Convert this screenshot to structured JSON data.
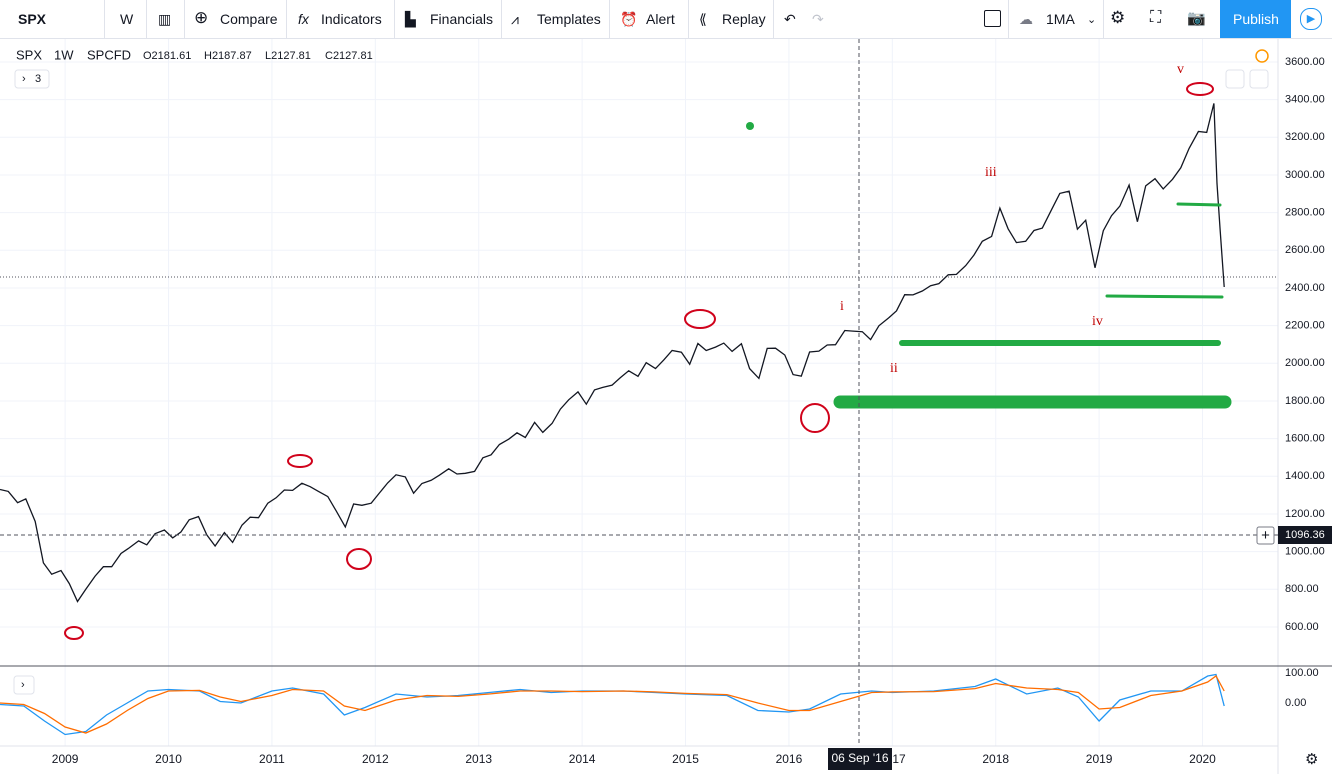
{
  "toolbar": {
    "symbol": "SPX",
    "interval": "W",
    "buttons": [
      "Compare",
      "Indicators",
      "Financials",
      "Templates",
      "Alert",
      "Replay"
    ],
    "indicator": "1MA",
    "publish": "Publish"
  },
  "legend": {
    "symbol": "SPX",
    "interval": "1W",
    "source": "SPCFD",
    "ohlc": [
      "O2181.61",
      "H2187.87",
      "L2127.81",
      "C2127.81"
    ],
    "indicators_count": "3"
  },
  "crosshair": {
    "date": "06 Sep '16",
    "price": "1096.36"
  },
  "waves": [
    "i",
    "ii",
    "iii",
    "iv",
    "v"
  ],
  "chart_data": [
    {
      "type": "line",
      "color": "#131722",
      "x": [
        2008.37,
        2008.45,
        2008.54,
        2008.62,
        2008.71,
        2008.79,
        2008.87,
        2008.96,
        2009.04,
        2009.12,
        2009.2,
        2009.29,
        2009.37,
        2009.45,
        2009.54,
        2009.62,
        2009.71,
        2009.79,
        2009.87,
        2009.96,
        2010.04,
        2010.12,
        2010.2,
        2010.29,
        2010.37,
        2010.45,
        2010.54,
        2010.62,
        2010.71,
        2010.79,
        2010.87,
        2010.96,
        2011.04,
        2011.12,
        2011.2,
        2011.29,
        2011.37,
        2011.45,
        2011.54,
        2011.62,
        2011.71,
        2011.79,
        2011.87,
        2011.96,
        2012.04,
        2012.12,
        2012.2,
        2012.29,
        2012.37,
        2012.45,
        2012.54,
        2012.62,
        2012.71,
        2012.79,
        2012.87,
        2012.96,
        2013.04,
        2013.12,
        2013.2,
        2013.29,
        2013.37,
        2013.45,
        2013.54,
        2013.62,
        2013.71,
        2013.79,
        2013.87,
        2013.96,
        2014.04,
        2014.12,
        2014.2,
        2014.29,
        2014.37,
        2014.45,
        2014.54,
        2014.62,
        2014.71,
        2014.79,
        2014.87,
        2014.96,
        2015.04,
        2015.12,
        2015.2,
        2015.29,
        2015.37,
        2015.45,
        2015.54,
        2015.62,
        2015.71,
        2015.79,
        2015.87,
        2015.96,
        2016.04,
        2016.12,
        2016.2,
        2016.29,
        2016.37,
        2016.45,
        2016.54,
        2016.62,
        2016.71,
        2016.79,
        2016.87,
        2016.96,
        2017.04,
        2017.12,
        2017.2,
        2017.29,
        2017.37,
        2017.45,
        2017.54,
        2017.62,
        2017.71,
        2017.79,
        2017.87,
        2017.96,
        2018.04,
        2018.12,
        2018.2,
        2018.29,
        2018.37,
        2018.45,
        2018.54,
        2018.62,
        2018.71,
        2018.79,
        2018.87,
        2018.96,
        2019.04,
        2019.12,
        2019.2,
        2019.29,
        2019.37,
        2019.45,
        2019.54,
        2019.62,
        2019.71,
        2019.79,
        2019.87,
        2019.96,
        2020.04,
        2020.11,
        2020.14,
        2020.17,
        2020.21
      ],
      "values": [
        1330,
        1320,
        1260,
        1280,
        1160,
        940,
        880,
        900,
        830,
        735,
        800,
        870,
        920,
        920,
        990,
        1020,
        1057,
        1036,
        1095,
        1115,
        1073,
        1104,
        1169,
        1186,
        1089,
        1030,
        1101,
        1049,
        1141,
        1183,
        1180,
        1257,
        1286,
        1327,
        1325,
        1363,
        1345,
        1320,
        1292,
        1218,
        1131,
        1253,
        1246,
        1257,
        1312,
        1365,
        1408,
        1397,
        1310,
        1362,
        1379,
        1406,
        1440,
        1412,
        1416,
        1426,
        1498,
        1514,
        1569,
        1597,
        1631,
        1606,
        1686,
        1633,
        1681,
        1757,
        1806,
        1848,
        1783,
        1859,
        1872,
        1884,
        1924,
        1960,
        1931,
        2003,
        1972,
        2018,
        2068,
        2059,
        1995,
        2105,
        2068,
        2086,
        2107,
        2063,
        2104,
        1972,
        1920,
        2079,
        2080,
        2044,
        1940,
        1932,
        2060,
        2065,
        2097,
        2099,
        2174,
        2171,
        2168,
        2126,
        2199,
        2239,
        2279,
        2364,
        2363,
        2384,
        2412,
        2423,
        2470,
        2472,
        2519,
        2575,
        2648,
        2674,
        2824,
        2714,
        2641,
        2648,
        2705,
        2718,
        2816,
        2902,
        2914,
        2712,
        2760,
        2507,
        2704,
        2784,
        2834,
        2946,
        2752,
        2942,
        2980,
        2926,
        2977,
        3038,
        3141,
        3231,
        3226,
        3380,
        2954,
        2711,
        2405
      ],
      "xlim": [
        2008.37,
        2020.73
      ],
      "xticks": [
        2009,
        2010,
        2011,
        2012,
        2013,
        2014,
        2015,
        2016,
        2017,
        2018,
        2019,
        2020
      ],
      "ylim": [
        398,
        3722
      ],
      "yticks": [
        {
          "value": 600,
          "label": "600.00"
        },
        {
          "value": 800,
          "label": "800.00"
        },
        {
          "value": 1000,
          "label": "1000.00"
        },
        {
          "value": 1200,
          "label": "1200.00"
        },
        {
          "value": 1400,
          "label": "1400.00"
        },
        {
          "value": 1600,
          "label": "1600.00"
        },
        {
          "value": 1800,
          "label": "1800.00"
        },
        {
          "value": 2000,
          "label": "2000.00"
        },
        {
          "value": 2200,
          "label": "2200.00"
        },
        {
          "value": 2400,
          "label": "2400.00"
        },
        {
          "value": 2600,
          "label": "2600.00"
        },
        {
          "value": 2800,
          "label": "2800.00"
        },
        {
          "value": 3000,
          "label": "3000.00"
        },
        {
          "value": 3200,
          "label": "3200.00"
        },
        {
          "value": 3400,
          "label": "3400.00"
        },
        {
          "value": 3600,
          "label": "3600.00"
        }
      ],
      "grid": true
    },
    {
      "type": "line",
      "x": [
        2008.37,
        2008.6,
        2008.8,
        2009.0,
        2009.2,
        2009.4,
        2009.6,
        2009.8,
        2010.0,
        2010.3,
        2010.5,
        2010.7,
        2011.0,
        2011.2,
        2011.5,
        2011.7,
        2011.9,
        2012.2,
        2012.5,
        2012.8,
        2013.1,
        2013.4,
        2013.7,
        2014.0,
        2014.4,
        2014.7,
        2015.0,
        2015.4,
        2015.7,
        2016.0,
        2016.2,
        2016.5,
        2016.8,
        2017.0,
        2017.4,
        2017.8,
        2018.0,
        2018.3,
        2018.6,
        2018.8,
        2019.0,
        2019.2,
        2019.5,
        2019.8,
        2020.05,
        2020.13,
        2020.21
      ],
      "series": [
        {
          "color": "#2196f3",
          "values": [
            -5,
            -10,
            -60,
            -105,
            -95,
            -40,
            0,
            40,
            45,
            40,
            5,
            0,
            40,
            50,
            30,
            -40,
            -15,
            30,
            20,
            25,
            35,
            45,
            35,
            40,
            40,
            35,
            30,
            25,
            -25,
            -30,
            -20,
            30,
            40,
            35,
            40,
            55,
            80,
            30,
            50,
            20,
            -60,
            10,
            40,
            40,
            90,
            95,
            -10
          ]
        },
        {
          "color": "#ff6d00",
          "values": [
            0,
            -5,
            -35,
            -80,
            -100,
            -70,
            -25,
            15,
            40,
            42,
            20,
            5,
            25,
            45,
            40,
            -10,
            -25,
            10,
            25,
            22,
            30,
            40,
            40,
            38,
            40,
            37,
            32,
            28,
            0,
            -25,
            -25,
            5,
            35,
            37,
            38,
            48,
            65,
            50,
            45,
            35,
            -20,
            -15,
            25,
            40,
            70,
            90,
            40
          ]
        }
      ],
      "xlim": [
        2008.37,
        2020.73
      ],
      "ylim": [
        -140,
        120
      ],
      "yticks": [
        {
          "value": 0,
          "label": "0.00"
        },
        {
          "value": 100,
          "label": "100.00"
        }
      ]
    }
  ]
}
